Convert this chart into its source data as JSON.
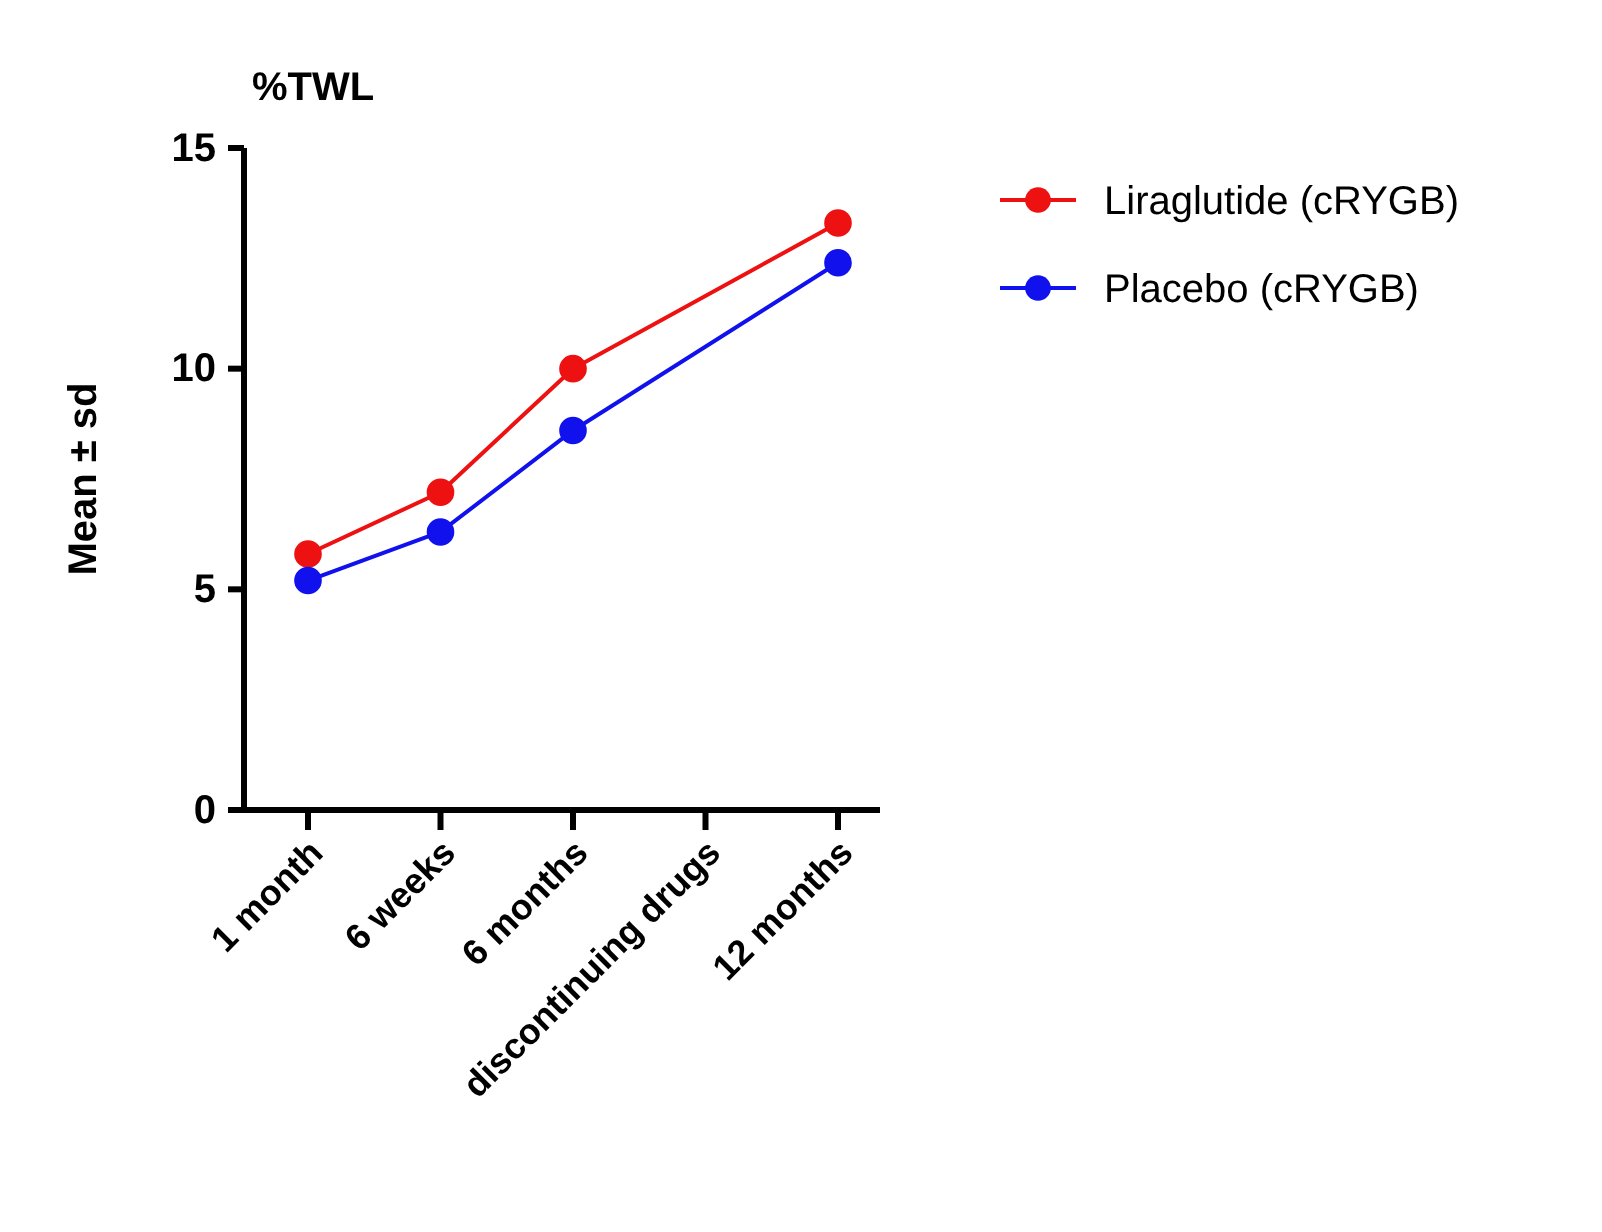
{
  "chart_data": {
    "type": "line",
    "title": "%TWL",
    "ylabel": "Mean ± sd",
    "categories": [
      "1 month",
      "6 weeks",
      "6 months",
      "discontinuing drugs",
      "12 months"
    ],
    "series": [
      {
        "name": "Liraglutide (cRYGB)",
        "color": "#ee1111",
        "values": [
          5.8,
          7.2,
          10.0,
          null,
          13.3
        ]
      },
      {
        "name": "Placebo (cRYGB)",
        "color": "#1111ee",
        "values": [
          5.2,
          6.3,
          8.6,
          null,
          12.4
        ]
      }
    ],
    "ylim": [
      0,
      15
    ],
    "yticks": [
      0,
      5,
      10,
      15
    ],
    "grid": false,
    "legend": "right",
    "marker": "circle",
    "line_style": "solid"
  }
}
